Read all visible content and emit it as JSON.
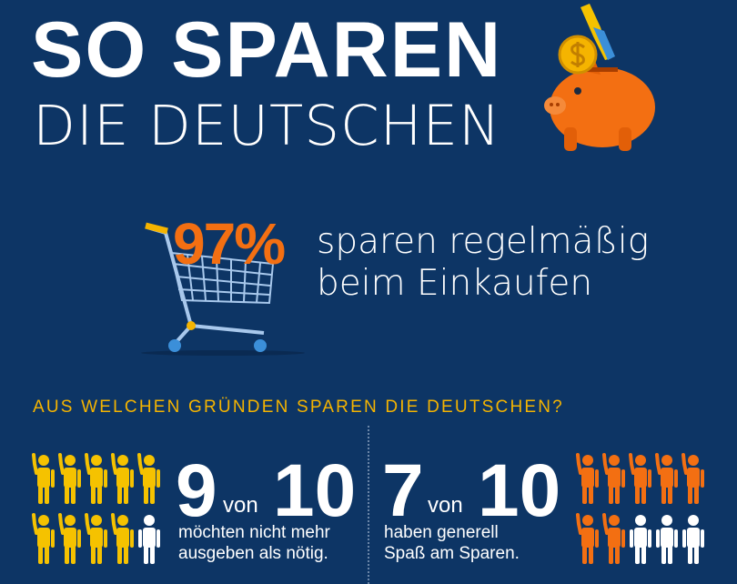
{
  "title": {
    "line1": "SO SPAREN",
    "line2": "DIE DEUTSCHEN"
  },
  "shopping": {
    "percent": "97%",
    "text_line1": "sparen regelmäßig",
    "text_line2": "beim Einkaufen"
  },
  "reasons_heading": "AUS WELCHEN GRÜNDEN SPAREN DIE DEUTSCHEN?",
  "stat_left": {
    "count": "9",
    "von": "von",
    "total": "10",
    "line1": "möchten nicht mehr",
    "line2": "ausgeben als nötig.",
    "filled": 9,
    "of": 10,
    "color": "#f5c200"
  },
  "stat_right": {
    "count": "7",
    "von": "von",
    "total": "10",
    "line1": "haben generell",
    "line2": "Spaß am Sparen.",
    "filled": 7,
    "of": 10,
    "color": "#f36f12"
  },
  "colors": {
    "background": "#0d3565",
    "accent_orange": "#f36f12",
    "accent_yellow": "#f5b400"
  },
  "icons": [
    "piggy-bank-icon",
    "coin-dollar-icon",
    "shopping-cart-icon",
    "person-icon"
  ]
}
